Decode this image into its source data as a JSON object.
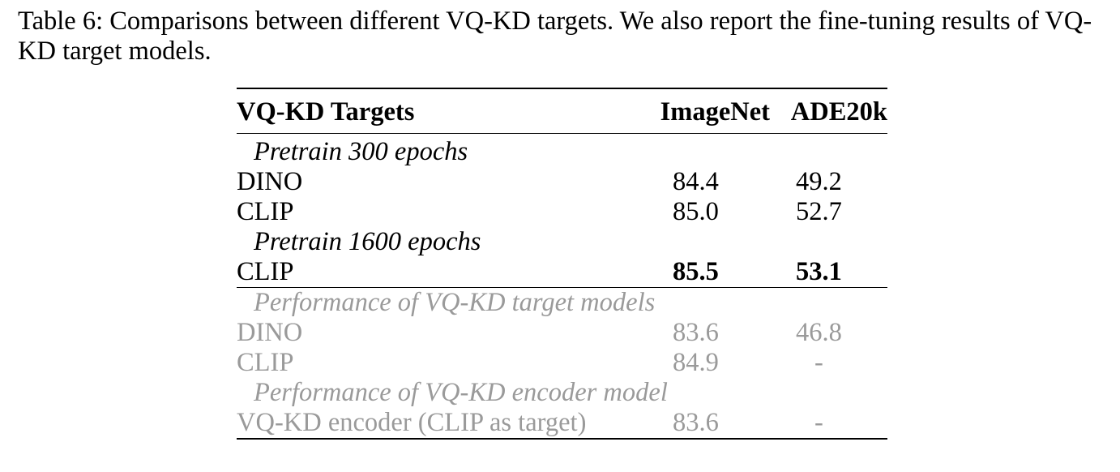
{
  "caption": "Table 6: Comparisons between different VQ-KD targets. We also report the fine-tuning results of VQ-KD target models.",
  "table": {
    "headers": [
      "VQ-KD Targets",
      "ImageNet",
      "ADE20k"
    ],
    "sections": [
      {
        "title": "Pretrain 300 epochs",
        "rows": [
          {
            "target": "DINO",
            "imagenet": "84.4",
            "ade20k": "49.2"
          },
          {
            "target": "CLIP",
            "imagenet": "85.0",
            "ade20k": "52.7"
          }
        ]
      },
      {
        "title": "Pretrain 1600 epochs",
        "rows": [
          {
            "target": "CLIP",
            "imagenet": "85.5",
            "ade20k": "53.1",
            "bold": true
          }
        ]
      },
      {
        "title": "Performance of VQ-KD target models",
        "grey": true,
        "rows": [
          {
            "target": "DINO",
            "imagenet": "83.6",
            "ade20k": "46.8"
          },
          {
            "target": "CLIP",
            "imagenet": "84.9",
            "ade20k": "-"
          }
        ]
      },
      {
        "title": "Performance of VQ-KD encoder model",
        "grey": true,
        "rows": [
          {
            "target": "VQ-KD encoder (CLIP as target)",
            "imagenet": "83.6",
            "ade20k": "-"
          }
        ]
      }
    ]
  }
}
